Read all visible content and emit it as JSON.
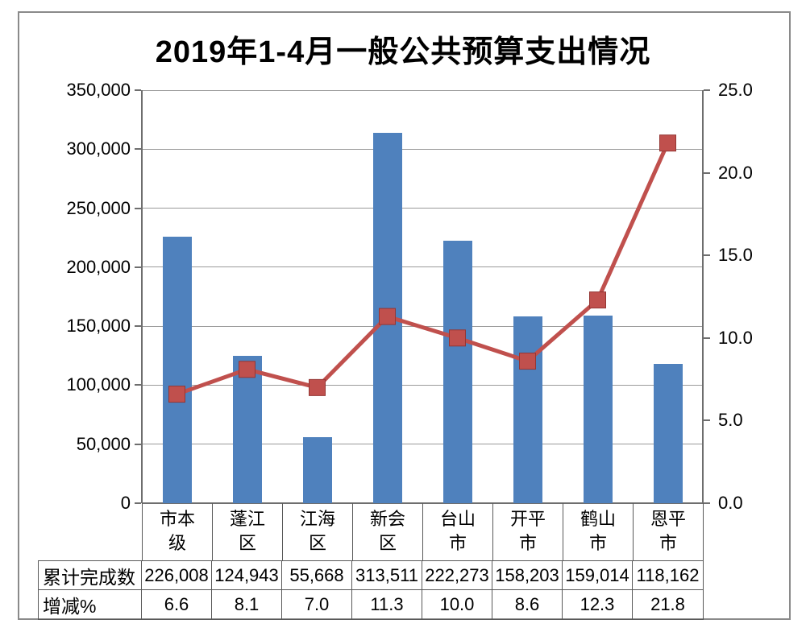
{
  "title": "2019年1-4月一般公共预算支出情况",
  "chart_data": {
    "type": "combo",
    "categories": [
      "市本级",
      "蓬江区",
      "江海区",
      "新会区",
      "台山市",
      "开平市",
      "鹤山市",
      "恩平市"
    ],
    "series": [
      {
        "name": "累计完成数",
        "type": "bar",
        "axis": "left",
        "values": [
          226008,
          124943,
          55668,
          313511,
          222273,
          158203,
          159014,
          118162
        ]
      },
      {
        "name": "增减%",
        "type": "line",
        "axis": "right",
        "values": [
          6.6,
          8.1,
          7.0,
          11.3,
          10.0,
          8.6,
          12.3,
          21.8
        ]
      }
    ],
    "left_axis": {
      "min": 0,
      "max": 350000,
      "step": 50000,
      "tick_labels": [
        "0",
        "50,000",
        "100,000",
        "150,000",
        "200,000",
        "250,000",
        "300,000",
        "350,000"
      ]
    },
    "right_axis": {
      "min": 0,
      "max": 25,
      "step": 5,
      "tick_labels": [
        "0.0",
        "5.0",
        "10.0",
        "15.0",
        "20.0",
        "25.0"
      ]
    },
    "grid": true,
    "legend_position": "none",
    "data_table": {
      "row_headers": [
        "累计完成数",
        "增减%"
      ],
      "rows": [
        [
          "226,008",
          "124,943",
          "55,668",
          "313,511",
          "222,273",
          "158,203",
          "159,014",
          "118,162"
        ],
        [
          "6.6",
          "8.1",
          "7.0",
          "11.3",
          "10.0",
          "8.6",
          "12.3",
          "21.8"
        ]
      ]
    }
  },
  "colors": {
    "bar": "#4F81BD",
    "line": "#C0504D",
    "marker_border": "#943634",
    "grid": "#9a9a9a",
    "axis": "#6e6e6e",
    "table_border": "#595959",
    "frame": "#8a8a8a",
    "text": "#000000"
  }
}
